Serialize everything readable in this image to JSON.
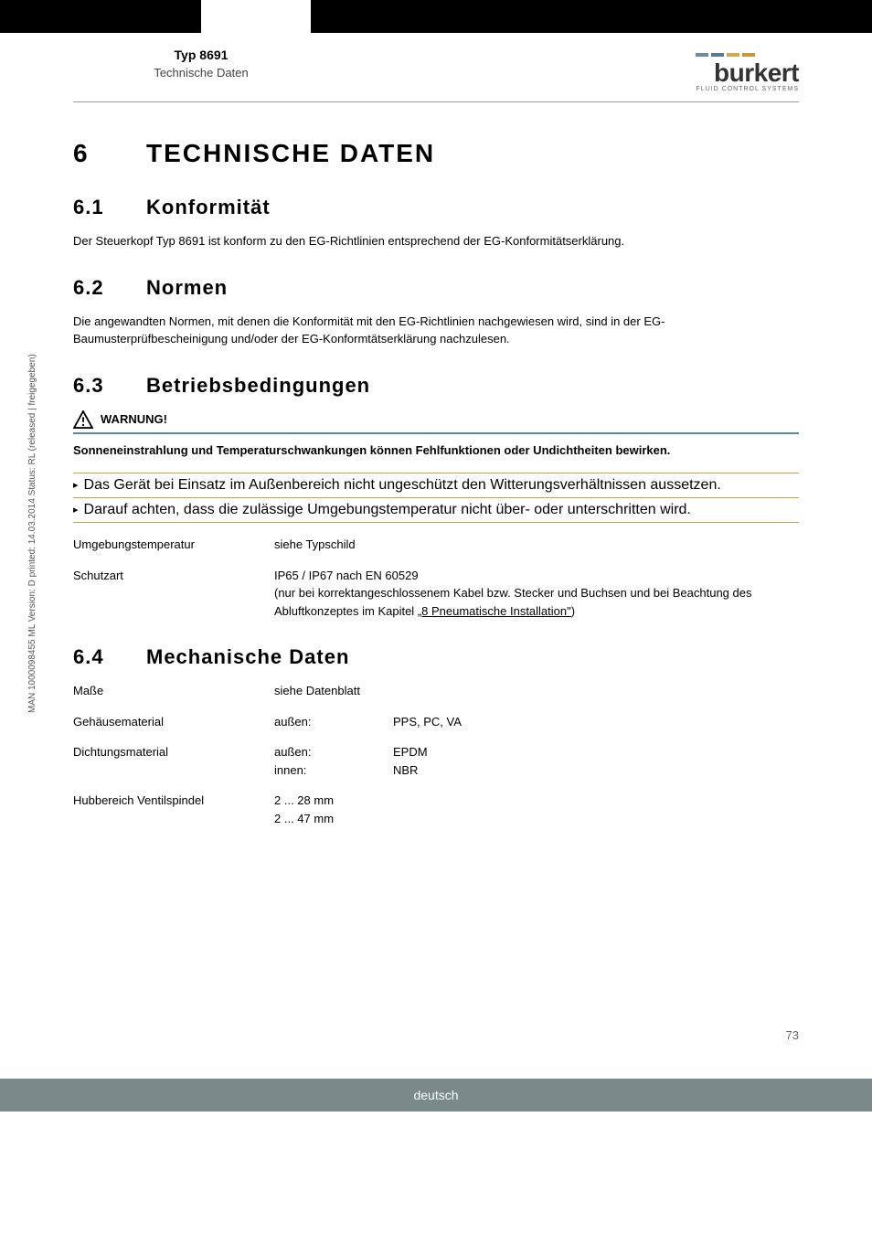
{
  "header": {
    "title": "Typ 8691",
    "subtitle": "Technische Daten",
    "logo_main": "burkert",
    "logo_sub": "FLUID CONTROL SYSTEMS",
    "logo_bar_colors": [
      "#6b8e9e",
      "#5a7a8a",
      "#d4a84a",
      "#c9963a"
    ]
  },
  "section": {
    "num": "6",
    "title": "TECHNISCHE DATEN"
  },
  "s61": {
    "num": "6.1",
    "title": "Konformität",
    "body": "Der Steuerkopf Typ 8691 ist konform zu den EG-Richtlinien entsprechend der EG-Konformitätserklärung."
  },
  "s62": {
    "num": "6.2",
    "title": "Normen",
    "body": "Die angewandten Normen, mit denen die Konformität mit den EG-Richtlinien nachgewiesen wird, sind in der EG-Baumusterprüfbescheinigung und/oder der EG-Konformtätserklärung nachzulesen."
  },
  "s63": {
    "num": "6.3",
    "title": "Betriebsbedingungen",
    "warning_label": "WARNUNG!",
    "warning_bold": "Sonneneinstrahlung und Temperaturschwankungen können Fehlfunktionen oder Undichtheiten bewirken.",
    "warning_b1": "Das Gerät bei Einsatz im Außenbereich nicht ungeschützt den Witterungsverhältnissen aussetzen.",
    "warning_b2": "Darauf achten, dass die zulässige Umgebungstemperatur nicht über- oder unterschritten wird.",
    "warning_rule_color": "#5a8aa0",
    "warning_body_rule_color": "#c9a050",
    "row1_label": "Umgebungstemperatur",
    "row1_val": "siehe Typschild",
    "row2_label": "Schutzart",
    "row2_val1": "IP65 / IP67 nach EN 60529",
    "row2_val2a": "(nur bei korrektangeschlossenem Kabel bzw. Stecker und Buchsen und bei Beachtung des Abluftkonzeptes im Kapitel ",
    "row2_val2_link": "„8 Pneumatische Installation\"",
    "row2_val2b": ")"
  },
  "s64": {
    "num": "6.4",
    "title": "Mechanische Daten",
    "rows": [
      {
        "label": "Maße",
        "col1": "siehe Datenblatt",
        "col2": ""
      },
      {
        "label": "Gehäusematerial",
        "col1": "außen:",
        "col2": "PPS, PC, VA"
      },
      {
        "label": "Dichtungsmaterial",
        "col1": "außen:\ninnen:",
        "col2": "EPDM\nNBR"
      },
      {
        "label": "Hubbereich Ventilspindel",
        "col1": "2 ... 28 mm\n2 ... 47 mm",
        "col2": ""
      }
    ]
  },
  "side_text": "MAN 1000098455 ML Version: D   printed: 14.03.2014 Status: RL (released | freigegeben)",
  "page_num": "73",
  "footer": "deutsch"
}
